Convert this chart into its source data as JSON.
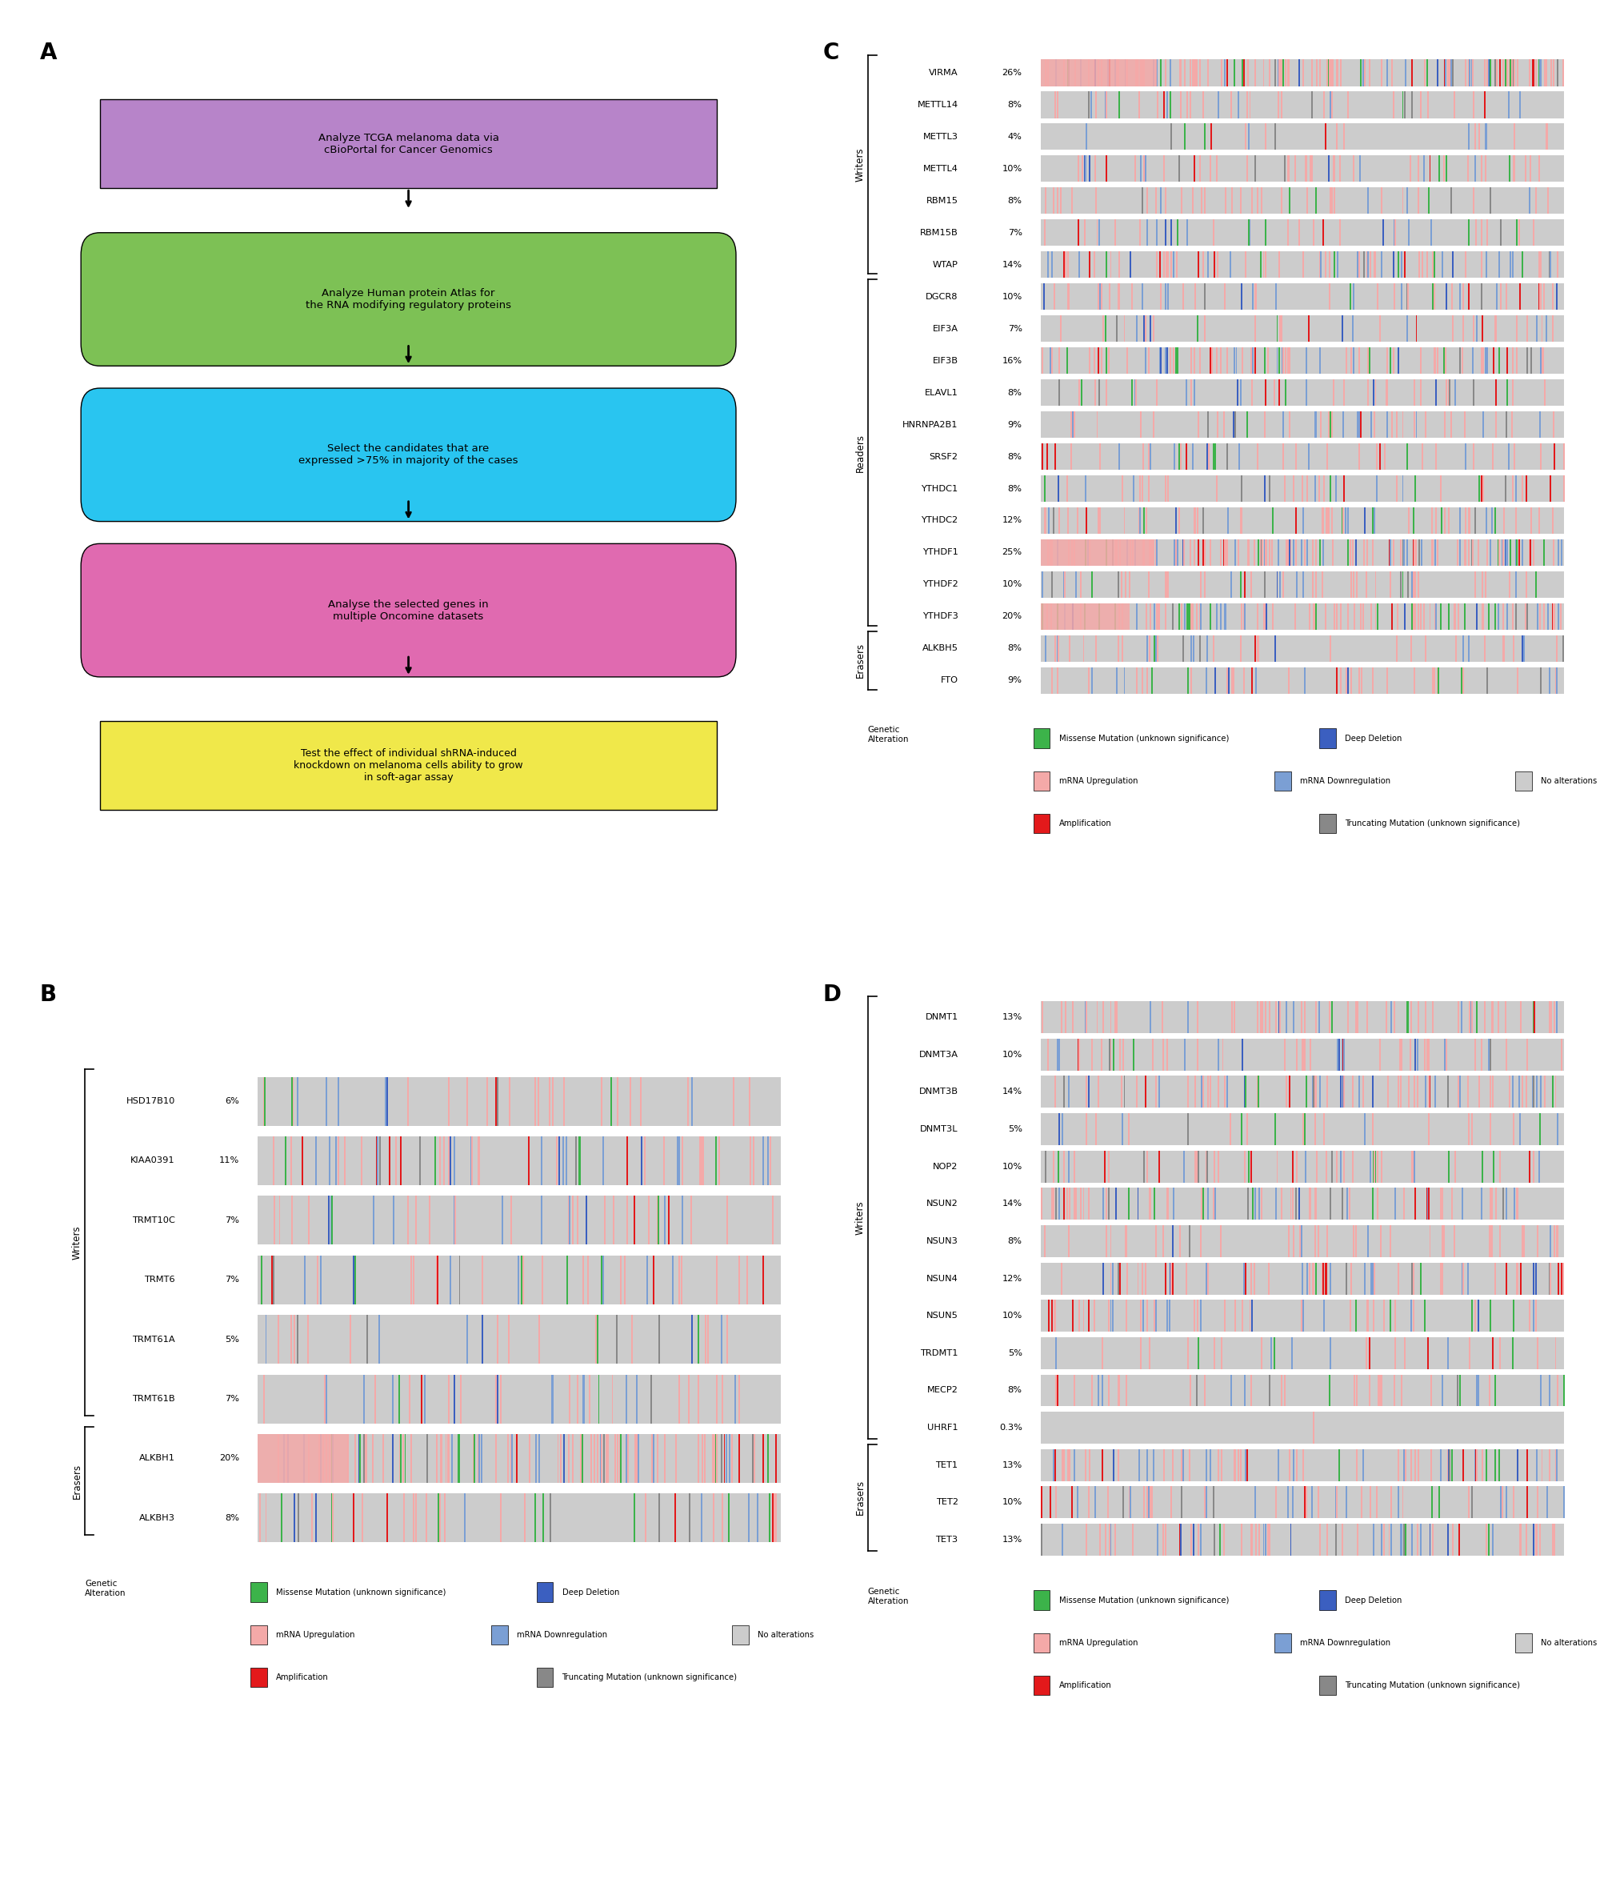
{
  "panel_A": {
    "boxes": [
      {
        "text": "Analyze TCGA melanoma data via\ncBioPortal for Cancer Genomics",
        "color": "#b784c9",
        "style": "rect"
      },
      {
        "text": "Analyze Human protein Atlas for\nthe RNA modifying regulatory proteins",
        "color": "#7dc155",
        "style": "rounded"
      },
      {
        "text": "Select the candidates that are\nexpressed >75% in majority of the cases",
        "color": "#29c5f0",
        "style": "rounded"
      },
      {
        "text": "Analyse the selected genes in\nmultiple Oncomine datasets",
        "color": "#e06ab0",
        "style": "rounded"
      },
      {
        "text": "Test the effect of individual shRNA-induced\nknockdown on melanoma cells ability to grow\nin soft-agar assay",
        "color": "#f0e84a",
        "style": "rect"
      }
    ]
  },
  "panel_C": {
    "genes": [
      "VIRMA",
      "METTL14",
      "METTL3",
      "METTL4",
      "RBM15",
      "RBM15B",
      "WTAP",
      "DGCR8",
      "EIF3A",
      "EIF3B",
      "ELAVL1",
      "HNRNPA2B1",
      "SRSF2",
      "YTHDC1",
      "YTHDC2",
      "YTHDF1",
      "YTHDF2",
      "YTHDF3",
      "ALKBH5",
      "FTO"
    ],
    "percentages": [
      "26%",
      "8%",
      "4%",
      "10%",
      "8%",
      "7%",
      "14%",
      "10%",
      "7%",
      "16%",
      "8%",
      "9%",
      "8%",
      "8%",
      "12%",
      "25%",
      "10%",
      "20%",
      "8%",
      "9%"
    ],
    "groups": {
      "Writers": [
        0,
        6
      ],
      "Readers": [
        7,
        17
      ],
      "Erasers": [
        18,
        19
      ]
    }
  },
  "panel_B": {
    "genes": [
      "HSD17B10",
      "KIAA0391",
      "TRMT10C",
      "TRMT6",
      "TRMT61A",
      "TRMT61B",
      "ALKBH1",
      "ALKBH3"
    ],
    "percentages": [
      "6%",
      "11%",
      "7%",
      "7%",
      "5%",
      "7%",
      "20%",
      "8%"
    ],
    "groups": {
      "Writers": [
        0,
        5
      ],
      "Erasers": [
        6,
        7
      ]
    }
  },
  "panel_D": {
    "genes": [
      "DNMT1",
      "DNMT3A",
      "DNMT3B",
      "DNMT3L",
      "NOP2",
      "NSUN2",
      "NSUN3",
      "NSUN4",
      "NSUN5",
      "TRDMT1",
      "MECP2",
      "UHRF1",
      "TET1",
      "TET2",
      "TET3"
    ],
    "percentages": [
      "13%",
      "10%",
      "14%",
      "5%",
      "10%",
      "14%",
      "8%",
      "12%",
      "10%",
      "5%",
      "8%",
      "0.3%",
      "13%",
      "10%",
      "13%"
    ],
    "groups": {
      "Writers": [
        0,
        11
      ],
      "Readers": [
        11,
        11
      ],
      "Erasers": [
        12,
        14
      ]
    }
  },
  "colors": {
    "upregulation": "#f4a9a8",
    "downregulation": "#7b9fd4",
    "amplification": "#e3191b",
    "missense": "#3cb34a",
    "deep_deletion": "#3b5fc0",
    "truncating": "#888888",
    "no_alt": "#cccccc"
  }
}
